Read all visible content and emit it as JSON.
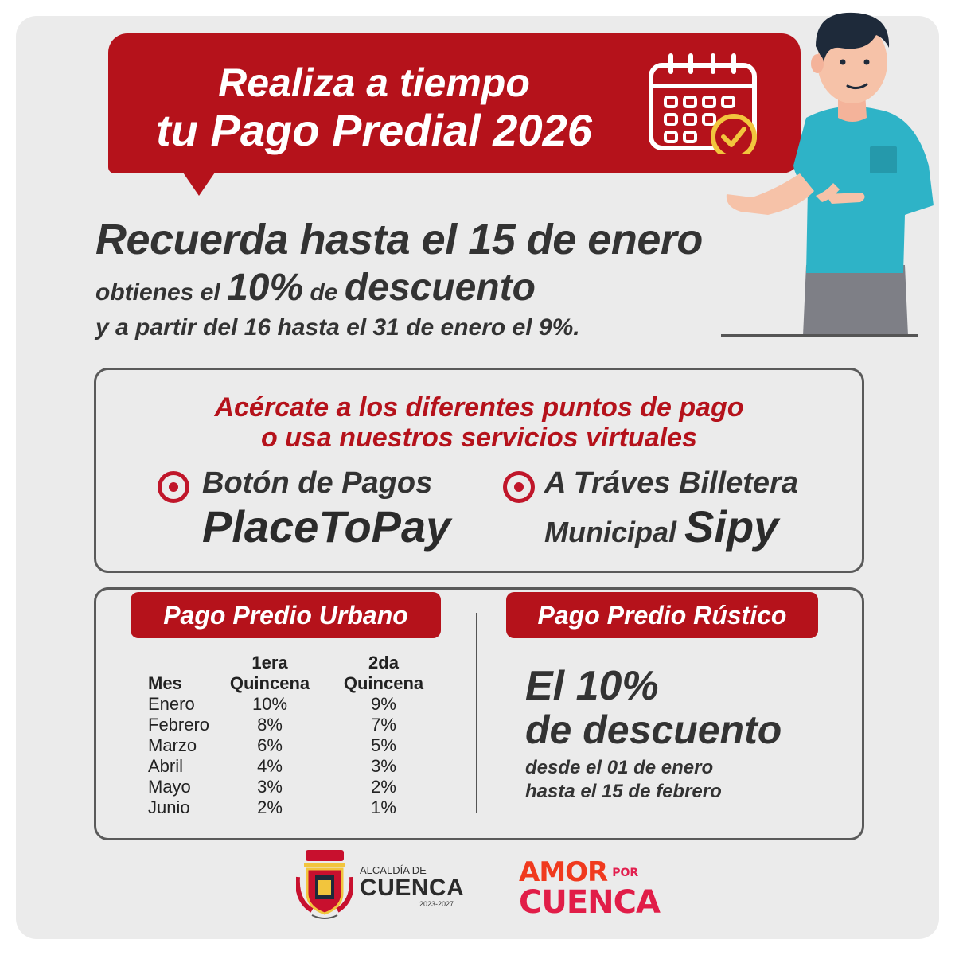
{
  "banner": {
    "line1": "Realiza a tiempo",
    "line2": "tu Pago Predial 2026"
  },
  "headline": {
    "line1": "Recuerda hasta el 15 de enero",
    "line2_pre": "obtienes el",
    "line2_pct": "10%",
    "line2_mid": "de",
    "line2_word": "descuento",
    "line3": "y a partir del 16 hasta el 31 de enero el 9%."
  },
  "payment_points": {
    "title_line1": "Acércate a los diferentes puntos de pago",
    "title_line2": "o usa nuestros servicios virtuales",
    "option1_line1": "Botón de Pagos",
    "option1_line2": "PlaceToPay",
    "option2_line1": "A Tráves Billetera",
    "option2_line2_pre": "Municipal",
    "option2_line2_name": "Sipy"
  },
  "urbano": {
    "tag": "Pago Predio Urbano",
    "col_mes": "Mes",
    "col1_a": "1era",
    "col1_b": "Quincena",
    "col2_a": "2da",
    "col2_b": "Quincena",
    "rows": [
      {
        "mes": "Enero",
        "q1": "10%",
        "q2": "9%"
      },
      {
        "mes": "Febrero",
        "q1": "8%",
        "q2": "7%"
      },
      {
        "mes": "Marzo",
        "q1": "6%",
        "q2": "5%"
      },
      {
        "mes": "Abril",
        "q1": "4%",
        "q2": "3%"
      },
      {
        "mes": "Mayo",
        "q1": "3%",
        "q2": "2%"
      },
      {
        "mes": "Junio",
        "q1": "2%",
        "q2": "1%"
      }
    ]
  },
  "rustico": {
    "tag": "Pago Predio Rústico",
    "line1": "El 10%",
    "line2": "de descuento",
    "line3": "desde el 01 de enero",
    "line4": "hasta el 15 de febrero"
  },
  "footer": {
    "alcaldia_small": "ALCALDÍA DE",
    "alcaldia_big": "CUENCA",
    "alcaldia_years": "2023-2027",
    "amor": "AMOR",
    "por": "POR",
    "cuenca": "CUENCA"
  },
  "colors": {
    "brand_red": "#b5121b",
    "background": "#ebebeb",
    "text_dark": "#2b2b2b"
  }
}
